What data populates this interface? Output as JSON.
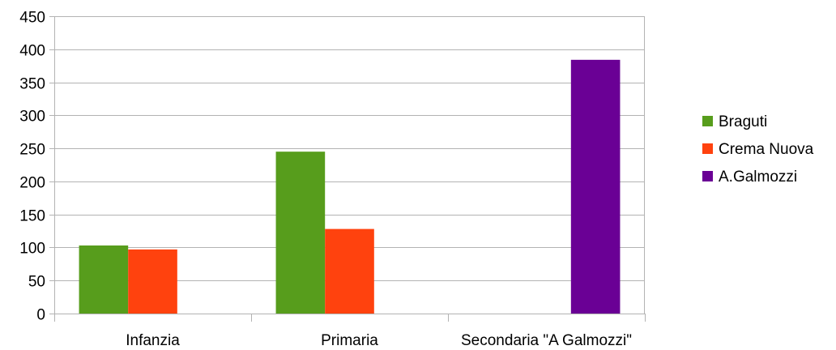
{
  "chart_data": {
    "type": "bar",
    "title": "",
    "xlabel": "",
    "ylabel": "",
    "categories": [
      "Infanzia",
      "Primaria",
      "Secondaria \"A Galmozzi\""
    ],
    "series": [
      {
        "name": "Braguti",
        "color": "#579d1c",
        "values": [
          103,
          245,
          null
        ]
      },
      {
        "name": "Crema Nuova",
        "color": "#ff420e",
        "values": [
          97,
          128,
          null
        ]
      },
      {
        "name": "A.Galmozzi",
        "color": "#7e0021",
        "values": [
          null,
          null,
          384
        ]
      }
    ],
    "ylim": [
      0,
      450
    ],
    "yticks": [
      0,
      50,
      100,
      150,
      200,
      250,
      300,
      350,
      400,
      450
    ],
    "grid": true,
    "legend_position": "right"
  }
}
